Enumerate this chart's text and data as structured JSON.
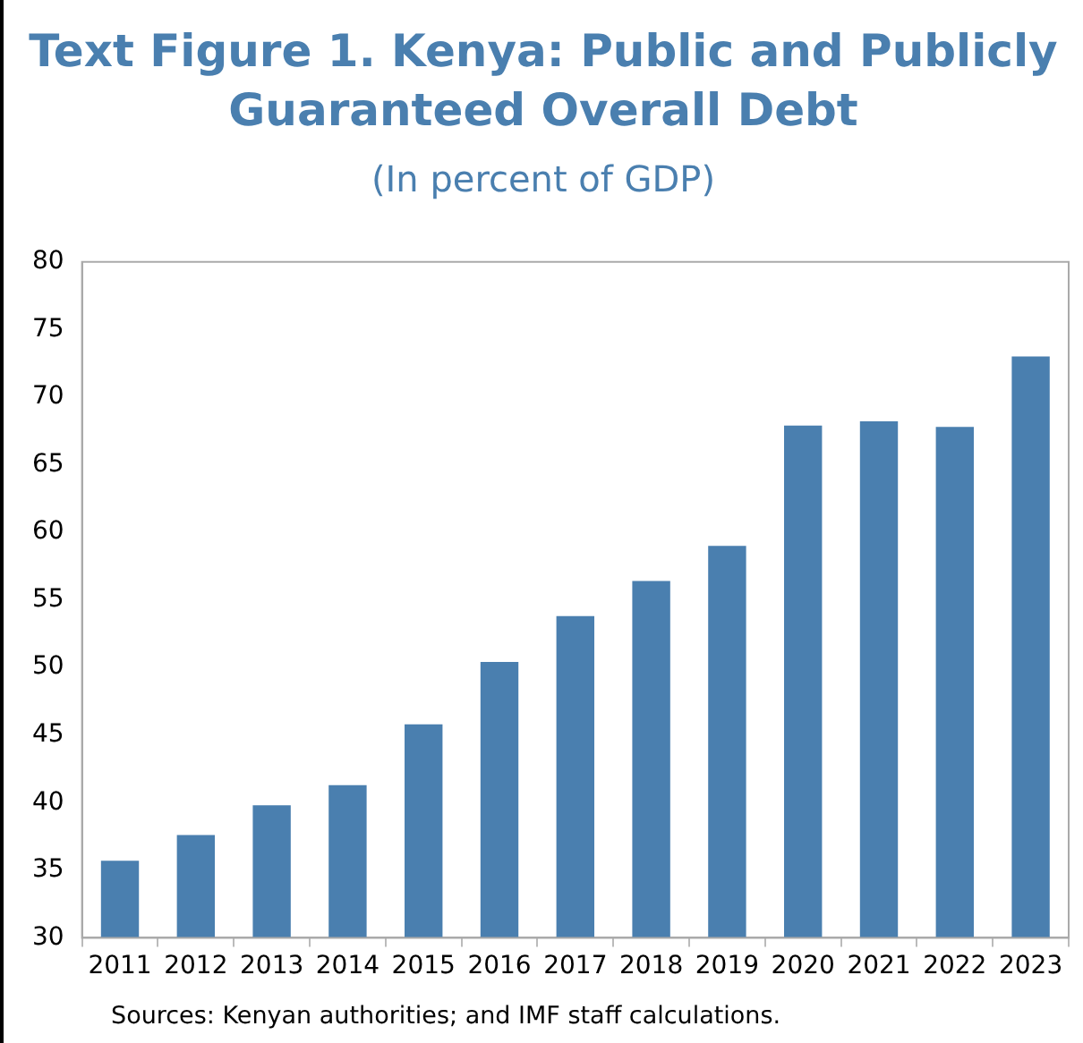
{
  "chart_data": {
    "type": "bar",
    "title": "Text Figure 1. Kenya: Public and Publicly Guaranteed Overall Debt",
    "subtitle": "(In percent of GDP)",
    "categories": [
      "2011",
      "2012",
      "2013",
      "2014",
      "2015",
      "2016",
      "2017",
      "2018",
      "2019",
      "2020",
      "2021",
      "2022",
      "2023"
    ],
    "values": [
      35.7,
      37.6,
      39.8,
      41.3,
      45.8,
      50.4,
      53.8,
      56.4,
      59.0,
      67.9,
      68.2,
      67.8,
      73.0
    ],
    "color": "#4a7faf",
    "ylim": [
      30,
      80
    ],
    "yticks": [
      30,
      35,
      40,
      45,
      50,
      55,
      60,
      65,
      70,
      75,
      80
    ],
    "grid": false,
    "legend": false,
    "annotations": [
      "Sources: Kenyan authorities; and IMF staff calculations."
    ]
  }
}
